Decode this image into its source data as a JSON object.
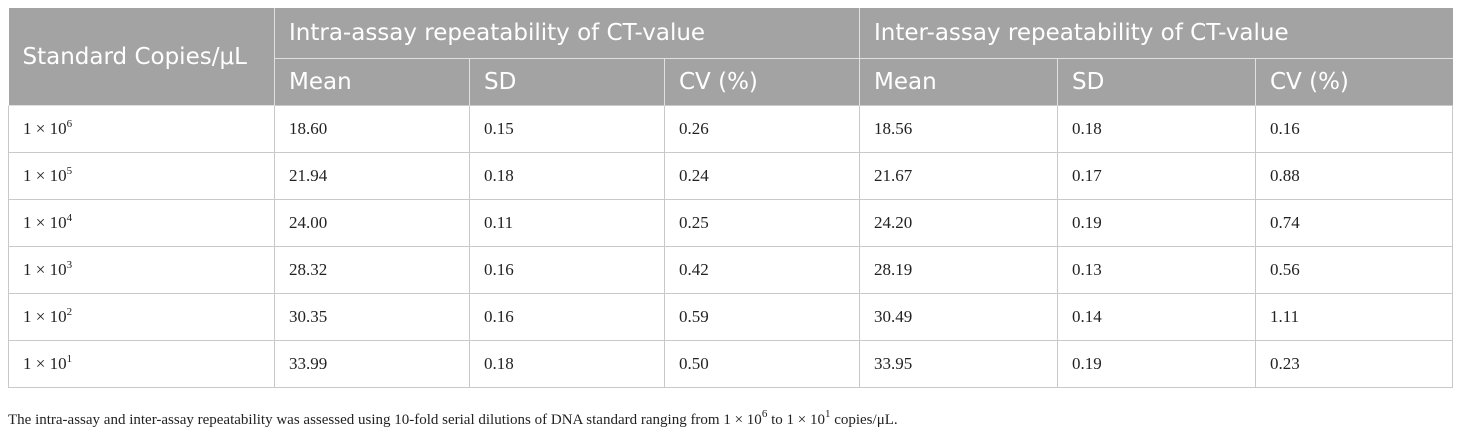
{
  "table": {
    "headers": {
      "standard": "Standard Copies/μL",
      "intra": "Intra-assay repeatability of CT-value",
      "inter": "Inter-assay repeatability of CT-value",
      "sub": [
        "Mean",
        "SD",
        "CV (%)",
        "Mean",
        "SD",
        "CV (%)"
      ]
    },
    "rows": [
      {
        "base": "1 × 10",
        "exp": "6",
        "cells": [
          "18.60",
          "0.15",
          "0.26",
          "18.56",
          "0.18",
          "0.16"
        ]
      },
      {
        "base": "1 × 10",
        "exp": "5",
        "cells": [
          "21.94",
          "0.18",
          "0.24",
          "21.67",
          "0.17",
          "0.88"
        ]
      },
      {
        "base": "1 × 10",
        "exp": "4",
        "cells": [
          "24.00",
          "0.11",
          "0.25",
          "24.20",
          "0.19",
          "0.74"
        ]
      },
      {
        "base": "1 × 10",
        "exp": "3",
        "cells": [
          "28.32",
          "0.16",
          "0.42",
          "28.19",
          "0.13",
          "0.56"
        ]
      },
      {
        "base": "1 × 10",
        "exp": "2",
        "cells": [
          "30.35",
          "0.16",
          "0.59",
          "30.49",
          "0.14",
          "1.11"
        ]
      },
      {
        "base": "1 × 10",
        "exp": "1",
        "cells": [
          "33.99",
          "0.18",
          "0.50",
          "33.95",
          "0.19",
          "0.23"
        ]
      }
    ]
  },
  "footnote": {
    "part1": "The intra-assay and inter-assay repeatability was assessed using 10-fold serial dilutions of DNA standard ranging from 1 × 10",
    "exp1": "6",
    "part2": " to 1 × 10",
    "exp2": "1",
    "part3": " copies/μL."
  }
}
